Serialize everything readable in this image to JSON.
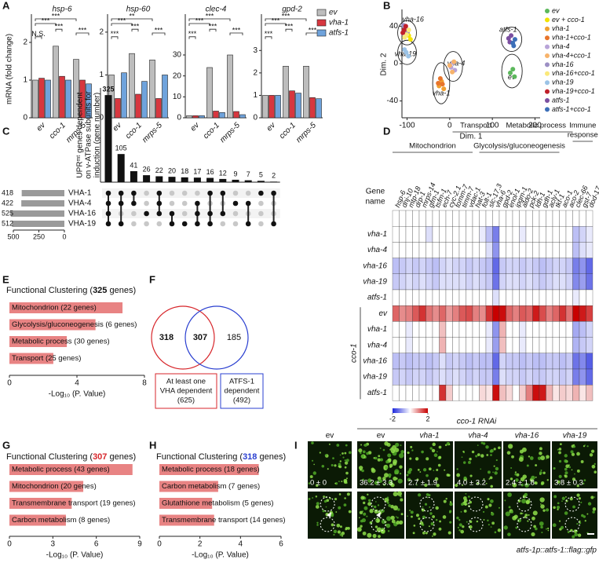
{
  "panel_labels": [
    "A",
    "B",
    "C",
    "D",
    "E",
    "F",
    "G",
    "H",
    "I"
  ],
  "chart_data": [
    {
      "type": "grouped-bar-panel",
      "ylabel": "mRNA (fold change)",
      "categories": [
        "ev",
        "cco-1",
        "mrps-5"
      ],
      "series": [
        {
          "name": "ev",
          "color": "#bdbdbd"
        },
        {
          "name": "vha-1",
          "color": "#d7373f"
        },
        {
          "name": "atfs-1",
          "color": "#6fa3dc"
        }
      ],
      "panels": [
        {
          "title": "hsp-6",
          "values": [
            [
              1.0,
              1.9,
              1.55
            ],
            [
              1.05,
              1.1,
              1.0
            ],
            [
              1.0,
              1.0,
              0.9
            ]
          ],
          "ylim": [
            0,
            2.5
          ],
          "yticks": [
            0,
            1,
            2
          ],
          "annotations": [
            "***",
            "***",
            "N.S.",
            "***",
            "***"
          ]
        },
        {
          "title": "hsp-60",
          "values": [
            [
              1.0,
              1.5,
              1.35
            ],
            [
              0.45,
              0.55,
              0.45
            ],
            [
              1.05,
              0.85,
              1.0
            ]
          ],
          "ylim": [
            0,
            2.2
          ],
          "yticks": [
            0,
            1,
            2
          ],
          "annotations": [
            "**",
            "***",
            "***",
            "***",
            "***"
          ]
        },
        {
          "title": "clec-4",
          "values": [
            [
              1.0,
              24,
              30
            ],
            [
              1.0,
              3.2,
              3.0
            ],
            [
              1.0,
              2.5,
              1.5
            ]
          ],
          "ylim": [
            0,
            45
          ],
          "yticks": [
            0,
            10,
            20,
            30
          ],
          "annotations": [
            "***",
            "***",
            "***",
            "***",
            "***"
          ]
        },
        {
          "title": "gpd-2",
          "values": [
            [
              1.0,
              2.3,
              2.3
            ],
            [
              1.0,
              1.2,
              0.9
            ],
            [
              1.0,
              1.1,
              0.85
            ]
          ],
          "ylim": [
            0,
            4.2
          ],
          "yticks": [
            0,
            1,
            2,
            3
          ],
          "annotations": [
            "***",
            "***",
            "***",
            "***",
            "***"
          ]
        }
      ]
    },
    {
      "type": "scatter",
      "xlabel": "Dim. 1",
      "ylabel": "Dim. 2",
      "xlim": [
        -112,
        212
      ],
      "xticks": [
        -100,
        0,
        100,
        200
      ],
      "ylim": [
        -58,
        58
      ],
      "yticks": [
        -40,
        0,
        40
      ],
      "annotations": [
        "vha-16",
        "vha-19",
        "vha-1",
        "vha-4",
        "atfs-1",
        "ev"
      ],
      "series": [
        {
          "name": "ev",
          "color": "#5cb85c",
          "x": [
            142,
            148,
            152
          ],
          "y": [
            -10,
            -6,
            -14
          ]
        },
        {
          "name": "ev + cco-1",
          "color": "#f2e300",
          "x": [
            -96,
            -92,
            -99
          ],
          "y": [
            30,
            26,
            33
          ]
        },
        {
          "name": "vha-1",
          "color": "#f0a030",
          "x": [
            -25,
            -19,
            -14
          ],
          "y": [
            -24,
            -19,
            -27
          ]
        },
        {
          "name": "vha-1+cco-1",
          "color": "#e8742a",
          "x": [
            -22,
            -17,
            -27
          ],
          "y": [
            -16,
            -22,
            -21
          ]
        },
        {
          "name": "vha-4",
          "color": "#b8a4d8",
          "x": [
            3,
            8,
            12
          ],
          "y": [
            -4,
            1,
            -7
          ]
        },
        {
          "name": "vha-4+cco-1",
          "color": "#f7b36b",
          "x": [
            6,
            0,
            10
          ],
          "y": [
            -9,
            -2,
            2
          ]
        },
        {
          "name": "vha-16",
          "color": "#9c8fc4",
          "x": [
            -104,
            -99,
            -108
          ],
          "y": [
            38,
            34,
            41
          ]
        },
        {
          "name": "vha-16+cco-1",
          "color": "#fbe97a",
          "x": [
            -101,
            -96,
            -106
          ],
          "y": [
            31,
            36,
            28
          ]
        },
        {
          "name": "vha-19",
          "color": "#9bc3e6",
          "x": [
            -102,
            -97,
            -106
          ],
          "y": [
            12,
            8,
            15
          ]
        },
        {
          "name": "vha-19+cco-1",
          "color": "#c0202a",
          "x": [
            -107,
            -103,
            -110
          ],
          "y": [
            36,
            40,
            33
          ]
        },
        {
          "name": "atfs-1",
          "color": "#7b4fa0",
          "x": [
            138,
            144,
            141
          ],
          "y": [
            27,
            30,
            23
          ]
        },
        {
          "name": "atfs-1+cco-1",
          "color": "#3c6fb8",
          "x": [
            148,
            153,
            150
          ],
          "y": [
            22,
            26,
            19
          ]
        }
      ]
    },
    {
      "type": "upset",
      "ylabel_lines": [
        "UPRᵐᵗ genes dependent",
        "on v-ATPase subunits for",
        "induction (gene number)"
      ],
      "values": [
        325,
        105,
        41,
        26,
        22,
        20,
        18,
        17,
        16,
        12,
        9,
        7,
        5,
        2
      ],
      "ylim": [
        0,
        340
      ],
      "sets": [
        "VHA-1",
        "VHA-4",
        "VHA-16",
        "VHA-19"
      ],
      "set_sizes": [
        418,
        422,
        525,
        512
      ],
      "set_xlim": [
        0,
        500
      ],
      "set_xticks": [
        500,
        250,
        0
      ],
      "intersections": [
        [
          0,
          1,
          2,
          3
        ],
        [
          0,
          1,
          3
        ],
        [
          0,
          1
        ],
        [
          2
        ],
        [
          0,
          1,
          2
        ],
        [
          2,
          3
        ],
        [
          3
        ],
        [
          1,
          2,
          3
        ],
        [
          0,
          2,
          3
        ],
        [
          0,
          2
        ],
        [
          1
        ],
        [
          1,
          3
        ],
        [
          0
        ],
        [
          0,
          3
        ]
      ]
    },
    {
      "type": "heatmap",
      "column_header": [
        "Gene",
        "name"
      ],
      "row_group": "cco-1",
      "headers": [
        [
          "Transport"
        ],
        [
          "Metabolic process"
        ],
        [
          "Mitochondrion"
        ],
        [
          "Glycolysis/gluconeogenesis"
        ],
        [
          "Immune",
          "response"
        ]
      ],
      "columns": [
        "hsp-6",
        "dnj-10",
        "mtp-18",
        "drp-1",
        "mrps-14",
        "gfm-1",
        "tsfm-1",
        "ech-7",
        "cyc-2.1",
        "tomm-7",
        "timm-7",
        "vdac-1",
        "hat-3",
        "folt-1",
        "slc-17.3",
        "vha-6",
        "gpd-2",
        "enol-1",
        "ipgm-1",
        "aldo-2",
        "pck-2",
        "ldh-1",
        "gdh-1",
        "acly-1",
        "tkt-1",
        "aco-1",
        "aco-2",
        "clec-66",
        "gst-7",
        "dod-17"
      ],
      "column_colors": [
        "#d7262b",
        "#d7262b",
        "#d7262b",
        "#d7262b",
        "#d7262b",
        "#d7262b",
        "#d7262b",
        "#2a3fd0",
        "#2a3fd0",
        "#2a3fd0",
        "#d7262b",
        "#d7262b",
        "#d7262b",
        "#d7262b",
        "#d7262b",
        "#2a3fd0",
        "#d7262b",
        "#d7262b",
        "#d7262b",
        "#2a3fd0",
        "#2a3fd0",
        "#2a3fd0",
        "#d7262b",
        "#d7262b",
        "#d7262b",
        "#d7262b",
        "#d7262b",
        "#d7262b",
        "#2a3fd0",
        "#d7262b"
      ],
      "rows": [
        null,
        "vha-1",
        "vha-4",
        "vha-16",
        "vha-19",
        "atfs-1",
        "ev",
        "vha-1",
        "vha-4",
        "vha-16",
        "vha-19",
        "atfs-1"
      ],
      "values": [
        [
          0,
          0,
          0,
          0,
          0,
          0,
          0,
          0,
          0,
          0,
          0,
          0,
          0,
          0,
          0,
          0,
          0,
          0,
          0,
          0,
          0,
          0,
          0,
          0,
          0,
          0,
          0,
          0,
          0,
          0
        ],
        [
          0,
          0,
          0,
          0,
          0,
          -0.3,
          0,
          0,
          0,
          0,
          0,
          0,
          0,
          -0.2,
          -0.6,
          -1.2,
          0,
          0,
          0,
          -0.2,
          0,
          0,
          0,
          0,
          0,
          0,
          0,
          -0.6,
          -0.4,
          -0.2
        ],
        [
          0,
          0,
          0,
          0,
          0,
          0,
          0,
          0,
          0,
          0,
          0,
          0,
          0,
          0,
          -0.3,
          -1.0,
          0,
          0,
          0,
          0,
          0,
          0,
          0,
          0,
          0,
          0,
          0,
          -0.6,
          -0.3,
          -0.2
        ],
        [
          -0.6,
          -0.5,
          -0.4,
          -0.5,
          -0.4,
          -0.5,
          -0.6,
          -0.4,
          -0.3,
          -0.4,
          -0.4,
          -0.5,
          -0.4,
          -0.5,
          -0.6,
          -1.4,
          -0.5,
          -0.4,
          -0.4,
          -0.5,
          -0.4,
          -0.5,
          -0.6,
          -0.5,
          -0.4,
          -0.4,
          -0.5,
          -1.2,
          -1.0,
          -1.4
        ],
        [
          -0.5,
          -0.4,
          -0.3,
          -0.4,
          -0.3,
          -0.4,
          -0.5,
          -0.3,
          -0.3,
          -0.3,
          -0.3,
          -0.4,
          -0.3,
          -0.4,
          -0.5,
          -1.3,
          -0.4,
          -0.3,
          -0.3,
          -0.4,
          -0.3,
          -0.4,
          -0.5,
          -0.4,
          -0.3,
          -0.3,
          -0.4,
          -1.1,
          -0.9,
          -1.3
        ],
        [
          0,
          0,
          0,
          0,
          0,
          0,
          0,
          0,
          0,
          0,
          0,
          0,
          0,
          0,
          0,
          -0.3,
          0,
          0,
          0,
          0,
          0,
          0,
          0,
          0,
          0,
          0,
          0,
          -0.2,
          0,
          0
        ],
        [
          1.2,
          0.9,
          1.0,
          1.3,
          1.6,
          1.1,
          0.9,
          1.2,
          0.8,
          1.0,
          1.3,
          1.4,
          1.0,
          0.9,
          1.6,
          2.0,
          1.9,
          1.2,
          1.0,
          1.3,
          1.2,
          1.8,
          1.4,
          1.0,
          1.2,
          1.6,
          1.1,
          2.0,
          1.8,
          1.5
        ],
        [
          0,
          0,
          -0.2,
          0,
          0,
          0,
          0,
          0.5,
          0,
          0,
          0,
          0,
          0,
          0,
          -0.2,
          -1.0,
          0.6,
          0,
          0,
          -0.2,
          0,
          0,
          0,
          0,
          0,
          0,
          0,
          -0.8,
          -0.6,
          -0.4
        ],
        [
          0,
          0,
          -0.2,
          0,
          0,
          0,
          0,
          0.6,
          0,
          0,
          0,
          0,
          0,
          0,
          -0.2,
          -0.9,
          0.5,
          0,
          0,
          -0.2,
          0,
          0,
          0,
          0,
          0,
          0,
          0,
          -0.7,
          -0.5,
          -0.4
        ],
        [
          -0.6,
          -0.5,
          -0.6,
          -0.5,
          -0.5,
          -0.6,
          -0.5,
          -0.3,
          -0.5,
          -0.4,
          -0.5,
          -0.6,
          -0.5,
          -0.6,
          -0.6,
          -1.4,
          -0.4,
          -0.5,
          -0.5,
          -0.6,
          -0.5,
          -0.6,
          -0.6,
          -0.5,
          -0.5,
          -0.6,
          -0.5,
          -1.3,
          -1.1,
          -1.5
        ],
        [
          -0.5,
          -0.4,
          -0.5,
          -0.4,
          -0.4,
          -0.5,
          -0.4,
          -0.3,
          -0.4,
          -0.3,
          -0.4,
          -0.5,
          -0.4,
          -0.5,
          -0.5,
          -1.2,
          -0.3,
          -0.4,
          -0.4,
          -0.5,
          -0.4,
          -0.5,
          -0.5,
          -0.4,
          -0.4,
          -0.5,
          -0.4,
          -1.2,
          -1.0,
          -1.4
        ],
        [
          0,
          0,
          0,
          0,
          0,
          0,
          0,
          1.6,
          0.4,
          0,
          0,
          0,
          0,
          0.3,
          0.2,
          1.9,
          0.5,
          0.3,
          0,
          0.4,
          1.0,
          1.9,
          1.8,
          0.6,
          0.2,
          0.4,
          0.3,
          0.6,
          0.2,
          0.5
        ]
      ],
      "vlim": [
        -2,
        2
      ],
      "ticks": [
        -2,
        2
      ]
    },
    {
      "type": "hbar",
      "title": [
        "Functional Clustering (",
        "325",
        " genes)"
      ],
      "count_color": "#111111",
      "color": "#e88383",
      "categories": [
        "Mitochondrion (22 genes)",
        "Glycolysis/gluconeogenesis (6 genes)",
        "Metabolic process (30 genes)",
        "Transport (25 genes)"
      ],
      "values": [
        6.7,
        5.1,
        3.4,
        2.6
      ],
      "xlim": [
        0,
        8
      ],
      "xticks": [
        0,
        4,
        8
      ],
      "xlabel": "-Log₁₀ (P. Value)"
    },
    {
      "type": "hbar",
      "title": [
        "Functional Clustering (",
        "307",
        " genes)"
      ],
      "count_color": "#d7262b",
      "color": "#e88383",
      "categories": [
        "Metabolic process (43 genes)",
        "Mitochondrion (20 genes)",
        "Transmembrane transport (19 genes)",
        "Carbon metabolism (8 genes)"
      ],
      "values": [
        8.5,
        5.1,
        4.3,
        3.9
      ],
      "xlim": [
        0,
        9
      ],
      "xticks": [
        0,
        3,
        6,
        9
      ],
      "xlabel": "-Log₁₀ (P. Value)"
    },
    {
      "type": "hbar",
      "title": [
        "Functional Clustering (",
        "318",
        " genes)"
      ],
      "count_color": "#2a3fd0",
      "color": "#e88383",
      "categories": [
        "Metabolic process (18 genes)",
        "Carbon metabolism (7 genes)",
        "Glutathione metabolism (5 genes)",
        "Transmembrane transport (14 genes)"
      ],
      "values": [
        4.9,
        2.9,
        2.6,
        2.7
      ],
      "xlim": [
        0,
        6
      ],
      "xticks": [
        0,
        2,
        4,
        6
      ],
      "xlabel": "-Log₁₀ (P. Value)"
    }
  ],
  "venn": {
    "left_only": "318",
    "overlap": "307",
    "right_only": "185",
    "left_box": [
      "At least one",
      "VHA dependent",
      "(625)"
    ],
    "right_box": [
      "ATFS-1",
      "dependent",
      "(492)"
    ]
  },
  "micrographs": {
    "header": "cco-1 RNAi",
    "columns": [
      "ev",
      "ev",
      "vha-1",
      "vha-4",
      "vha-16",
      "vha-19"
    ],
    "counts": [
      "0 ± 0",
      "36.2 ± 3.3",
      "2.7 ± 1.9",
      "4.0 ± 3.2",
      "2.4 ± 1.8",
      "3.8 ± 0.3"
    ],
    "caption": "atfs-1p::atfs-1::flag::gfp"
  }
}
